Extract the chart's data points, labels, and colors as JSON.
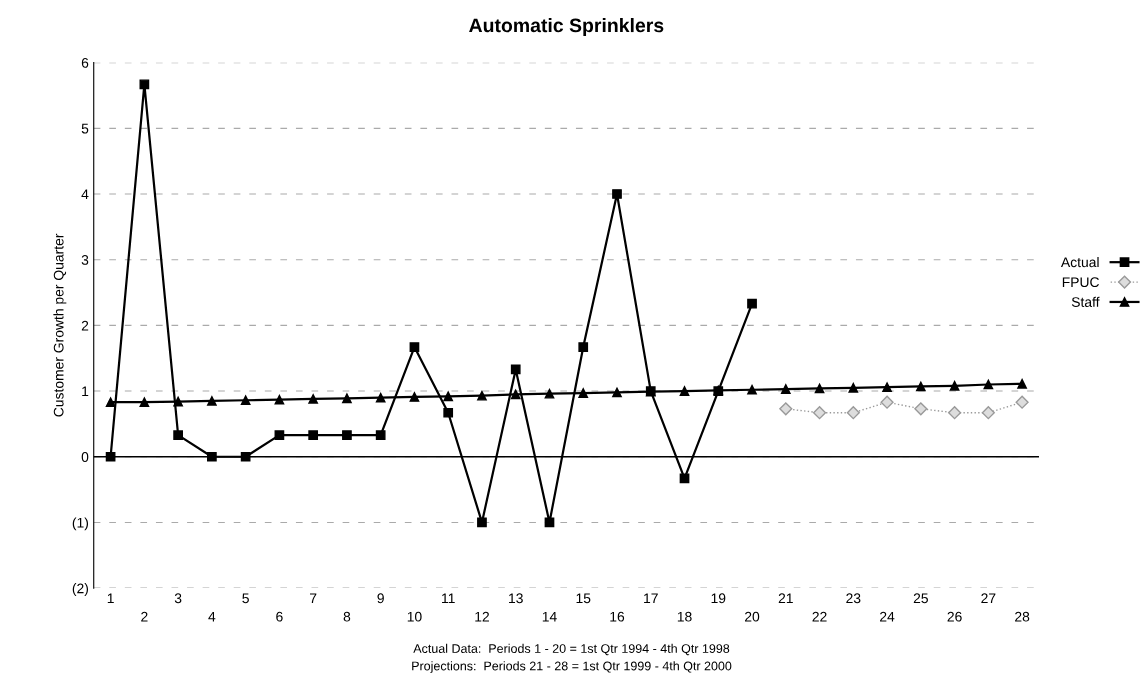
{
  "chart_data": {
    "type": "line",
    "title": "Automatic Sprinklers",
    "ylabel": "Customer Growth per Quarter",
    "categories": [
      "1",
      "2",
      "3",
      "4",
      "5",
      "6",
      "7",
      "8",
      "9",
      "10",
      "11",
      "12",
      "13",
      "14",
      "15",
      "16",
      "17",
      "18",
      "19",
      "20",
      "21",
      "22",
      "23",
      "24",
      "25",
      "26",
      "27",
      "28"
    ],
    "series": [
      {
        "name": "Actual",
        "color": "#000000",
        "marker": "square",
        "values": [
          0,
          5.67,
          0.33,
          0,
          0,
          0.33,
          0.33,
          0.33,
          0.33,
          1.67,
          0.67,
          -1,
          1.33,
          -1,
          1.67,
          4,
          1,
          -0.33,
          1,
          2.33,
          null,
          null,
          null,
          null,
          null,
          null,
          null,
          null
        ]
      },
      {
        "name": "FPUC",
        "color": "#999999",
        "marker": "diamond",
        "line_style": "dotted",
        "values": [
          null,
          null,
          null,
          null,
          null,
          null,
          null,
          null,
          null,
          null,
          null,
          null,
          null,
          null,
          null,
          null,
          null,
          null,
          null,
          null,
          0.73,
          0.67,
          0.67,
          0.83,
          0.73,
          0.67,
          0.67,
          0.83
        ]
      },
      {
        "name": "Staff",
        "color": "#000000",
        "marker": "triangle",
        "values": [
          0.83,
          0.83,
          0.84,
          0.85,
          0.86,
          0.87,
          0.88,
          0.89,
          0.9,
          0.91,
          0.92,
          0.93,
          0.95,
          0.96,
          0.97,
          0.98,
          0.99,
          1.0,
          1.01,
          1.02,
          1.03,
          1.04,
          1.05,
          1.06,
          1.07,
          1.08,
          1.1,
          1.11
        ]
      }
    ],
    "ylim": [
      -2,
      6
    ],
    "yticks": [
      {
        "value": -2,
        "label": "(2)"
      },
      {
        "value": -1,
        "label": "(1)"
      },
      0,
      1,
      2,
      3,
      4,
      5,
      6
    ],
    "ref_lines": [
      {
        "axis": "y",
        "value": 0,
        "color": "#000000"
      }
    ],
    "grid": "y",
    "legend": "right",
    "annotations": [
      "Actual Data:  Periods 1 - 20 = 1st Qtr 1994 - 4th Qtr 1998",
      "Projections:  Periods 21 - 28 = 1st Qtr 1999 - 4th Qtr 2000"
    ]
  }
}
